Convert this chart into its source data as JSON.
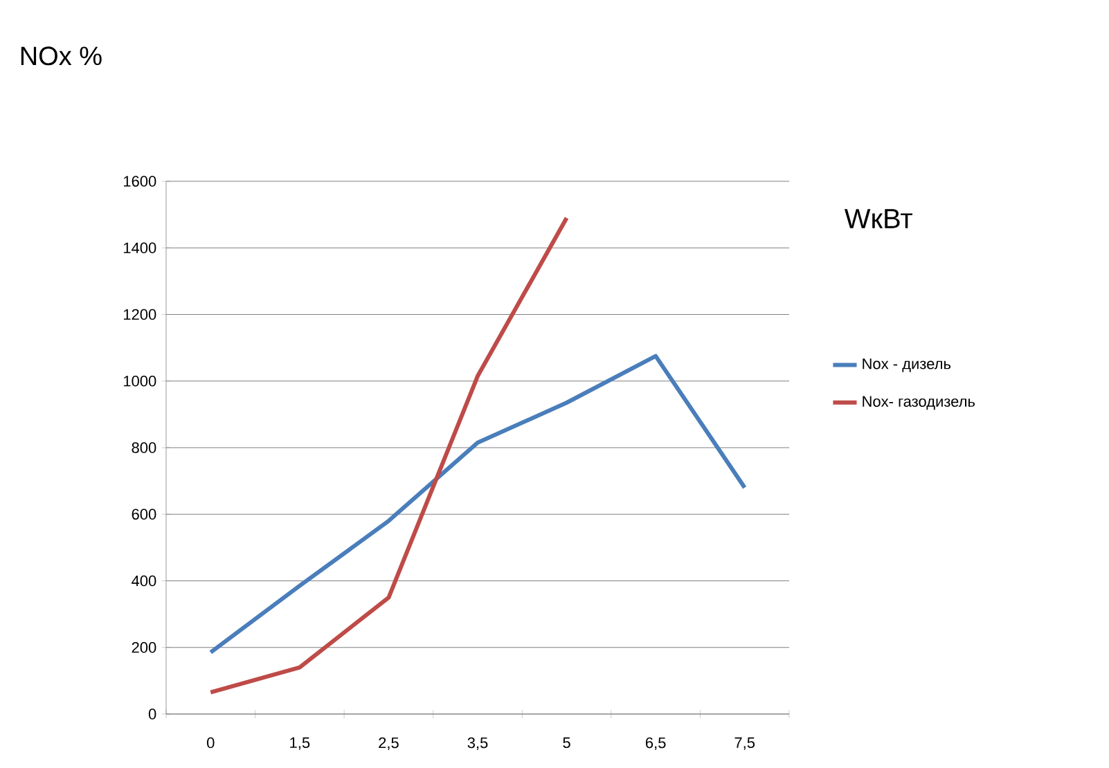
{
  "chart_data": {
    "type": "line",
    "ylabel": "NOx %",
    "xlabel": "WкВт",
    "categories": [
      "0",
      "1,5",
      "2,5",
      "3,5",
      "5",
      "6,5",
      "7,5"
    ],
    "series": [
      {
        "name": "Nox - дизель",
        "color": "#4a7ebb",
        "values": [
          185,
          385,
          580,
          815,
          935,
          1075,
          680
        ]
      },
      {
        "name": "Nox- газодизель",
        "color": "#be4b48",
        "values": [
          65,
          140,
          350,
          1015,
          1490,
          null,
          null
        ]
      }
    ],
    "ylim": [
      0,
      1600
    ],
    "yticks": [
      0,
      200,
      400,
      600,
      800,
      1000,
      1200,
      1400,
      1600
    ],
    "grid": "y",
    "legend": "right",
    "marker": "none",
    "line_style": "solid"
  }
}
